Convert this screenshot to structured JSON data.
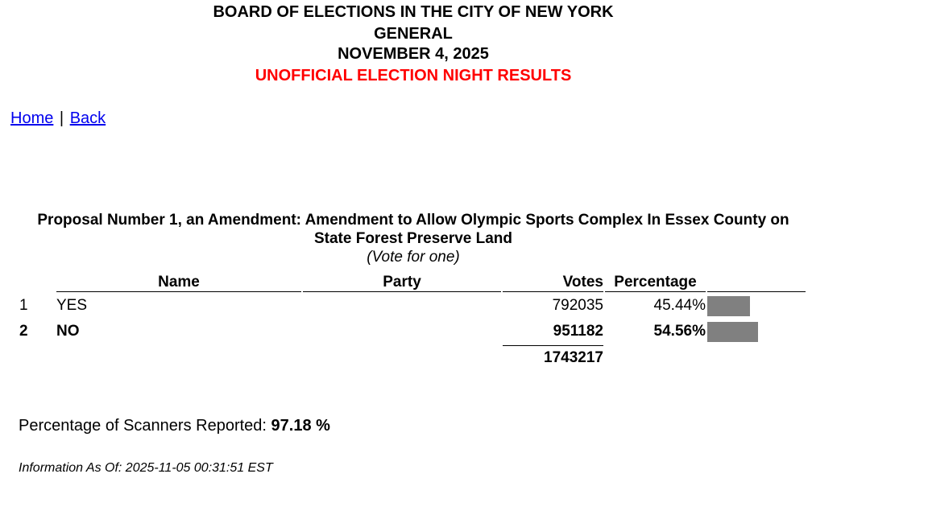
{
  "header": {
    "line1": "BOARD OF ELECTIONS IN THE CITY OF NEW YORK",
    "line2": "GENERAL",
    "line3": "NOVEMBER 4, 2025",
    "line4": "UNOFFICIAL ELECTION NIGHT RESULTS",
    "line4_color": "#ff0000"
  },
  "nav": {
    "home": "Home",
    "separator": "|",
    "back": "Back"
  },
  "contest": {
    "title_line1": "Proposal Number 1, an Amendment: Amendment to Allow Olympic Sports Complex In Essex County on",
    "title_line2": "State Forest Preserve Land",
    "vote_for": "(Vote for one)"
  },
  "table": {
    "headers": {
      "name": "Name",
      "party": "Party",
      "votes": "Votes",
      "percentage": "Percentage"
    },
    "rows": [
      {
        "num": "1",
        "name": "YES",
        "party": "",
        "votes": "792035",
        "percentage": "45.44%",
        "share": 0.4544
      },
      {
        "num": "2",
        "name": "NO",
        "party": "",
        "votes": "951182",
        "percentage": "54.56%",
        "share": 0.5456
      }
    ],
    "total": "1743217",
    "bar_color": "#808080"
  },
  "footer": {
    "scanners_label": "Percentage of Scanners Reported:",
    "scanners_value": "97.18 %",
    "asof": "Information As Of: 2025-11-05 00:31:51 EST"
  }
}
